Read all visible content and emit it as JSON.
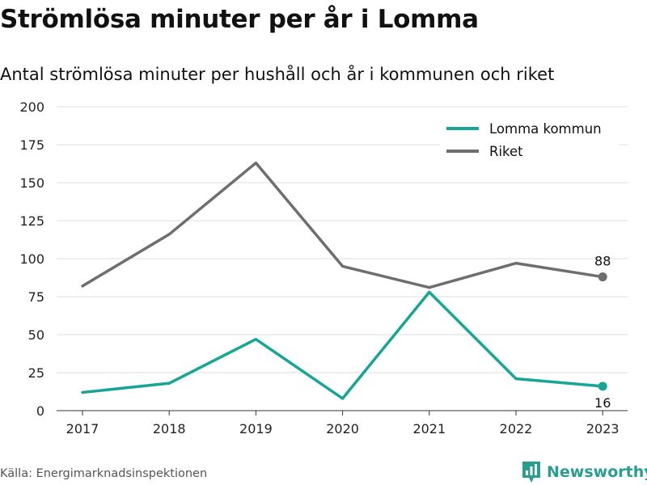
{
  "title": "Strömlösa minuter per år i Lomma",
  "subtitle": "Antal strömlösa minuter per hushåll och år i kommunen och riket",
  "source": "Källa: Energimarknadsinspektionen",
  "brand": {
    "name": "Newsworthy",
    "icon": "bar-chart-logo-icon",
    "color": "#2a9d8f"
  },
  "chart_data": {
    "type": "line",
    "x": [
      2017,
      2018,
      2019,
      2020,
      2021,
      2022,
      2023
    ],
    "ylim": [
      0,
      200
    ],
    "yticks": [
      0,
      25,
      50,
      75,
      100,
      125,
      150,
      175,
      200
    ],
    "grid": true,
    "legend_position": "top-right",
    "series": [
      {
        "name": "Lomma kommun",
        "color": "#16a596",
        "values": [
          12,
          18,
          47,
          8,
          78,
          21,
          16
        ],
        "end_label": "16",
        "end_label_side": "below"
      },
      {
        "name": "Riket",
        "color": "#6e6e6e",
        "values": [
          82,
          116,
          163,
          95,
          81,
          97,
          88
        ],
        "end_label": "88",
        "end_label_side": "above"
      }
    ]
  }
}
